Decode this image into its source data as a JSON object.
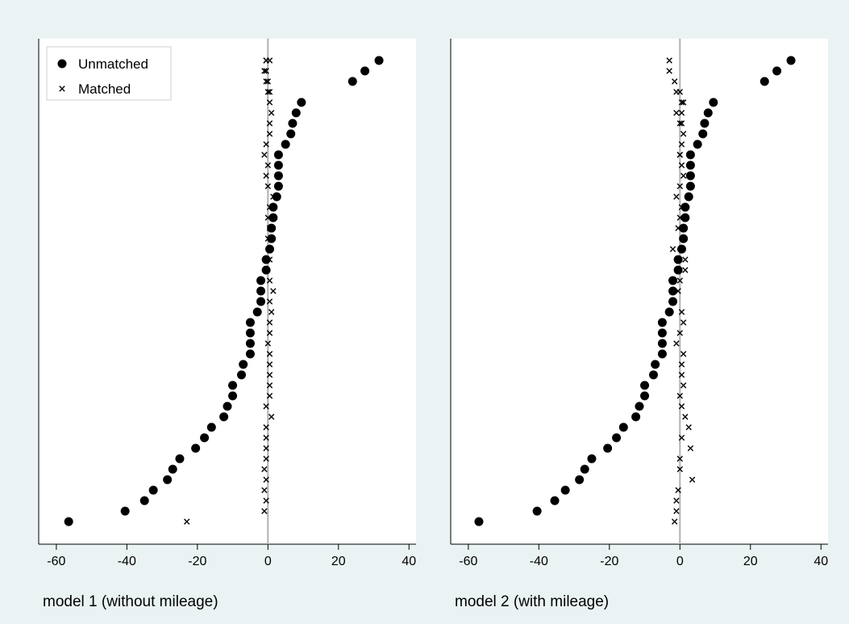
{
  "colors": {
    "background": "#eaf2f3",
    "plot_background": "#ffffff",
    "marker": "#000000",
    "zero_line": "#b0b0b0"
  },
  "chart_data": [
    {
      "type": "scatter",
      "title": "model 1 (without mileage)",
      "xlim": [
        -65,
        42
      ],
      "x_ticks": [
        -60,
        -40,
        -20,
        0,
        20,
        40
      ],
      "x_tick_labels": [
        "-60",
        "-40",
        "-20",
        "0",
        "20",
        "40"
      ],
      "y_axis_labels": "none",
      "zero_reference_line": 0,
      "grid": false,
      "legend": {
        "placement": "top-left",
        "entries": [
          {
            "label": "Unmatched",
            "marker": "filled-circle"
          },
          {
            "label": "Matched",
            "marker": "cross"
          }
        ]
      },
      "series": [
        {
          "name": "Unmatched",
          "marker": "filled-circle",
          "x": [
            -56.5,
            -40.5,
            -35.0,
            -32.5,
            -28.5,
            -27.0,
            -25.0,
            -20.5,
            -18.0,
            -16.0,
            -12.5,
            -11.5,
            -10.0,
            -10.0,
            -7.5,
            -7.0,
            -5.0,
            -5.0,
            -5.0,
            -5.0,
            -3.0,
            -2.0,
            -2.0,
            -2.0,
            -0.5,
            -0.5,
            0.5,
            1.0,
            1.0,
            1.5,
            1.5,
            2.5,
            3.0,
            3.0,
            3.0,
            3.0,
            5.0,
            6.5,
            7.0,
            8.0,
            9.5,
            24.0,
            27.5,
            31.5
          ],
          "y": [
            44,
            43,
            42,
            41,
            40,
            39,
            38,
            37,
            36,
            35,
            34,
            33,
            32,
            31,
            30,
            29,
            28,
            27,
            26,
            25,
            24,
            23,
            22,
            21,
            20,
            19,
            18,
            17,
            16,
            15,
            14,
            13,
            12,
            11,
            10,
            9,
            8,
            7,
            6,
            5,
            4,
            2,
            1,
            0
          ]
        },
        {
          "name": "Matched",
          "marker": "cross",
          "x": [
            -23.0,
            -1.0,
            -0.5,
            -1.0,
            -0.5,
            -1.0,
            -0.5,
            -0.5,
            -0.5,
            -0.5,
            1.0,
            -0.5,
            0.5,
            0.5,
            0.5,
            0.5,
            0.5,
            0.0,
            0.5,
            0.5,
            1.0,
            0.5,
            1.5,
            0.5,
            -0.5,
            0.5,
            0.5,
            0.0,
            0.5,
            0.0,
            0.5,
            1.5,
            0.0,
            -0.5,
            0.0,
            -1.0,
            -0.5,
            0.5,
            0.5,
            1.0,
            0.5,
            0.0,
            0.0,
            -0.5,
            0.5,
            0.5,
            -0.5,
            -1.0,
            -0.5,
            -0.5
          ],
          "y": [
            44,
            43,
            42,
            41,
            40,
            39,
            38,
            37,
            36,
            35,
            34,
            33,
            32,
            31,
            30,
            29,
            28,
            27,
            26,
            25,
            24,
            23,
            22,
            21,
            20,
            19,
            18,
            17,
            16,
            15,
            14,
            13,
            12,
            11,
            10,
            9,
            8,
            7,
            6,
            5,
            4,
            3,
            2,
            1,
            0,
            3,
            2,
            1,
            0,
            0
          ]
        }
      ]
    },
    {
      "type": "scatter",
      "title": "model 2 (with mileage)",
      "xlim": [
        -65,
        42
      ],
      "x_ticks": [
        -60,
        -40,
        -20,
        0,
        20,
        40
      ],
      "x_tick_labels": [
        "-60",
        "-40",
        "-20",
        "0",
        "20",
        "40"
      ],
      "y_axis_labels": "none",
      "zero_reference_line": 0,
      "grid": false,
      "series": [
        {
          "name": "Unmatched",
          "marker": "filled-circle",
          "x": [
            -57.0,
            -40.5,
            -35.5,
            -32.5,
            -28.5,
            -27.0,
            -25.0,
            -20.5,
            -18.0,
            -16.0,
            -12.5,
            -11.5,
            -10.0,
            -10.0,
            -7.5,
            -7.0,
            -5.0,
            -5.0,
            -5.0,
            -5.0,
            -3.0,
            -2.0,
            -2.0,
            -2.0,
            -0.5,
            -0.5,
            0.5,
            1.0,
            1.0,
            1.5,
            1.5,
            2.5,
            3.0,
            3.0,
            3.0,
            3.0,
            5.0,
            6.5,
            7.0,
            8.0,
            9.5,
            24.0,
            27.5,
            31.5
          ],
          "y": [
            44,
            43,
            42,
            41,
            40,
            39,
            38,
            37,
            36,
            35,
            34,
            33,
            32,
            31,
            30,
            29,
            28,
            27,
            26,
            25,
            24,
            23,
            22,
            21,
            20,
            19,
            18,
            17,
            16,
            15,
            14,
            13,
            12,
            11,
            10,
            9,
            8,
            7,
            6,
            5,
            4,
            2,
            1,
            0
          ]
        },
        {
          "name": "Matched",
          "marker": "cross",
          "x": [
            -1.5,
            -1.0,
            -1.0,
            -0.5,
            3.5,
            0.0,
            0.0,
            3.0,
            0.5,
            2.5,
            1.5,
            0.5,
            0.0,
            1.0,
            0.5,
            0.5,
            1.0,
            -1.0,
            0.0,
            1.0,
            0.5,
            -2.0,
            -0.5,
            0.0,
            1.5,
            1.5,
            -2.0,
            1.0,
            -0.5,
            0.0,
            0.5,
            -1.0,
            0.0,
            1.0,
            0.5,
            0.0,
            0.5,
            1.0,
            0.0,
            -1.0,
            0.5,
            0.0,
            -1.5,
            -3.0,
            -3.0,
            1.0,
            -1.0,
            0.5,
            0.5,
            0.0
          ],
          "y": [
            44,
            43,
            42,
            41,
            40,
            39,
            38,
            37,
            36,
            35,
            34,
            33,
            32,
            31,
            30,
            29,
            28,
            27,
            26,
            25,
            24,
            23,
            22,
            21,
            20,
            19,
            18,
            17,
            16,
            15,
            14,
            13,
            12,
            11,
            10,
            9,
            8,
            7,
            6,
            5,
            4,
            3,
            2,
            1,
            0,
            4,
            3,
            6,
            5,
            9
          ]
        }
      ]
    }
  ]
}
